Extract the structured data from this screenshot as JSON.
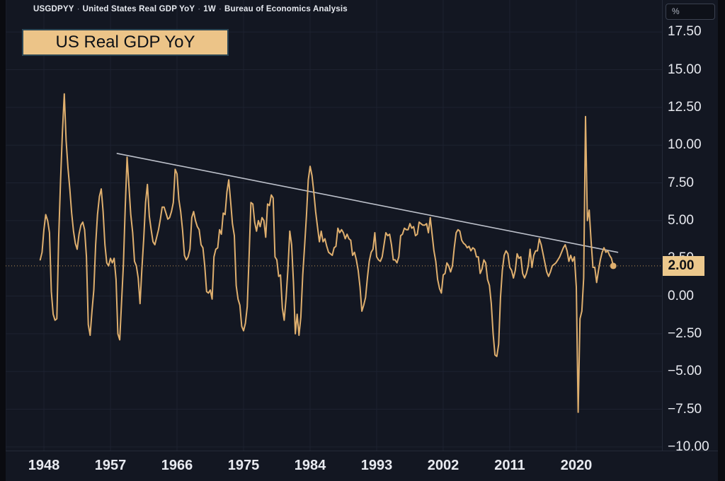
{
  "header": {
    "symbol": "USGDPYY",
    "separator": "·",
    "description": "United States Real GDP YoY",
    "interval": "1W",
    "source": "Bureau of Economics Analysis"
  },
  "title_badge": {
    "label": "US Real GDP YoY"
  },
  "price_axis": {
    "unit_button": "%",
    "tick_labels": [
      "17.50",
      "15.00",
      "12.50",
      "10.00",
      "7.50",
      "5.00",
      "2.50",
      "0.00",
      "−2.50",
      "−5.00",
      "−7.50",
      "−10.00"
    ],
    "last_price_badge": "2.00"
  },
  "time_axis": {
    "tick_labels": [
      "1948",
      "1957",
      "1966",
      "1975",
      "1984",
      "1993",
      "2002",
      "2011",
      "2020"
    ]
  },
  "colors": {
    "background": "#131722",
    "edge": "#0a0b10",
    "grid": "#1d2230",
    "axis_text": "#e8eaf0",
    "series": "#dfaf6e",
    "dotted_price_line": "#b98f55",
    "trendline": "#c6cad4",
    "badge_bg": "#ecc88c",
    "badge_text": "#0e1015"
  },
  "chart_data": {
    "type": "line",
    "title": "US Real GDP YoY",
    "ylabel": "%",
    "grid": true,
    "xlim": [
      1942.06,
      2031.59
    ],
    "ylim": [
      -10.24,
      19.62
    ],
    "x_axis": {
      "ticks": [
        1948,
        1957,
        1966,
        1975,
        1984,
        1993,
        2002,
        2011,
        2020
      ]
    },
    "y_axis": {
      "ticks": [
        17.5,
        15,
        12.5,
        10,
        7.5,
        5,
        2.5,
        0,
        -2.5,
        -5,
        -7.5,
        -10
      ]
    },
    "price_line": {
      "value": 2.0,
      "label": "2.00"
    },
    "trendline": {
      "x1": 1957.9,
      "y1": 9.45,
      "x2": 2025.6,
      "y2": 2.9
    },
    "series": [
      {
        "name": "USGDPYY — US Real GDP YoY (quarterly, %)",
        "x_start": 1947.5,
        "x_step": 0.25,
        "last_value": 2.0,
        "values": [
          2.4,
          2.9,
          4.4,
          5.4,
          5.0,
          4.2,
          0.3,
          -1.2,
          -1.6,
          -1.5,
          3.9,
          7.6,
          10.8,
          13.4,
          10.3,
          8.5,
          7.1,
          5.5,
          4.3,
          3.5,
          3.1,
          4.1,
          4.7,
          4.9,
          4.4,
          2.6,
          -1.9,
          -2.6,
          -1.0,
          0.4,
          3.4,
          5.4,
          6.6,
          7.1,
          5.6,
          3.4,
          2.2,
          2.0,
          2.5,
          2.2,
          2.5,
          1.1,
          -2.5,
          -2.9,
          -0.4,
          2.1,
          5.9,
          9.2,
          7.3,
          5.4,
          4.2,
          2.3,
          2.0,
          1.2,
          -0.5,
          1.8,
          3.8,
          6.2,
          7.4,
          5.3,
          4.4,
          3.6,
          3.4,
          3.9,
          4.4,
          5.1,
          5.9,
          5.9,
          5.5,
          5.1,
          5.2,
          5.6,
          6.2,
          8.4,
          8.1,
          6.4,
          5.6,
          4.4,
          2.7,
          2.4,
          2.6,
          3.1,
          5.2,
          5.6,
          5.0,
          4.6,
          4.4,
          3.4,
          3.2,
          2.0,
          0.3,
          0.2,
          0.4,
          -0.2,
          2.6,
          3.1,
          3.2,
          4.4,
          4.1,
          5.5,
          5.4,
          6.9,
          7.7,
          6.3,
          4.8,
          4.0,
          0.7,
          -0.2,
          -0.6,
          -2.0,
          -2.3,
          -1.8,
          -0.7,
          2.6,
          6.2,
          6.1,
          4.9,
          4.3,
          5.0,
          4.6,
          5.2,
          5.0,
          3.9,
          6.1,
          6.0,
          6.7,
          6.5,
          2.6,
          2.4,
          1.3,
          1.4,
          -0.8,
          -1.6,
          -0.1,
          1.8,
          4.3,
          3.4,
          0.9,
          -2.5,
          -1.2,
          -2.6,
          -1.4,
          1.4,
          3.3,
          5.3,
          7.7,
          8.6,
          8.0,
          6.9,
          5.6,
          4.6,
          3.6,
          4.3,
          3.6,
          3.8,
          3.3,
          2.9,
          2.8,
          2.7,
          3.2,
          3.3,
          4.5,
          4.2,
          4.4,
          4.2,
          3.8,
          4.1,
          3.8,
          3.7,
          2.7,
          2.9,
          2.4,
          1.7,
          0.6,
          -1.0,
          -0.6,
          -0.1,
          1.2,
          2.3,
          2.9,
          3.1,
          4.2,
          2.6,
          2.4,
          2.3,
          2.6,
          3.4,
          4.2,
          4.0,
          4.1,
          3.4,
          2.4,
          2.4,
          2.2,
          2.6,
          4.0,
          4.1,
          4.5,
          4.4,
          4.4,
          4.8,
          4.5,
          4.6,
          4.0,
          4.1,
          4.9,
          4.8,
          4.7,
          4.7,
          4.8,
          4.2,
          5.2,
          4.1,
          3.0,
          2.3,
          1.1,
          0.5,
          0.2,
          1.4,
          1.5,
          2.2,
          2.0,
          1.6,
          2.0,
          3.2,
          4.2,
          4.4,
          4.3,
          3.7,
          3.5,
          3.4,
          3.2,
          3.3,
          3.0,
          3.2,
          3.1,
          2.6,
          2.6,
          1.5,
          1.8,
          2.4,
          2.2,
          1.1,
          0.7,
          -0.5,
          -2.5,
          -3.9,
          -4.0,
          -3.2,
          -0.1,
          1.7,
          2.7,
          3.0,
          2.8,
          1.9,
          1.7,
          1.2,
          1.7,
          2.8,
          2.5,
          2.6,
          1.5,
          1.2,
          1.5,
          2.0,
          3.1,
          1.9,
          2.7,
          3.0,
          3.0,
          3.8,
          3.4,
          2.8,
          2.2,
          1.6,
          1.3,
          1.6,
          2.0,
          2.1,
          2.2,
          2.4,
          2.6,
          2.9,
          3.2,
          3.4,
          3.0,
          2.3,
          2.7,
          2.3,
          2.6,
          0.6,
          -7.7,
          -1.5,
          -1.0,
          1.2,
          11.9,
          5.0,
          5.7,
          3.7,
          1.9,
          1.9,
          0.9,
          1.7,
          2.4,
          2.9,
          3.2,
          2.9,
          3.0,
          2.7,
          2.5,
          2.0
        ]
      }
    ]
  }
}
